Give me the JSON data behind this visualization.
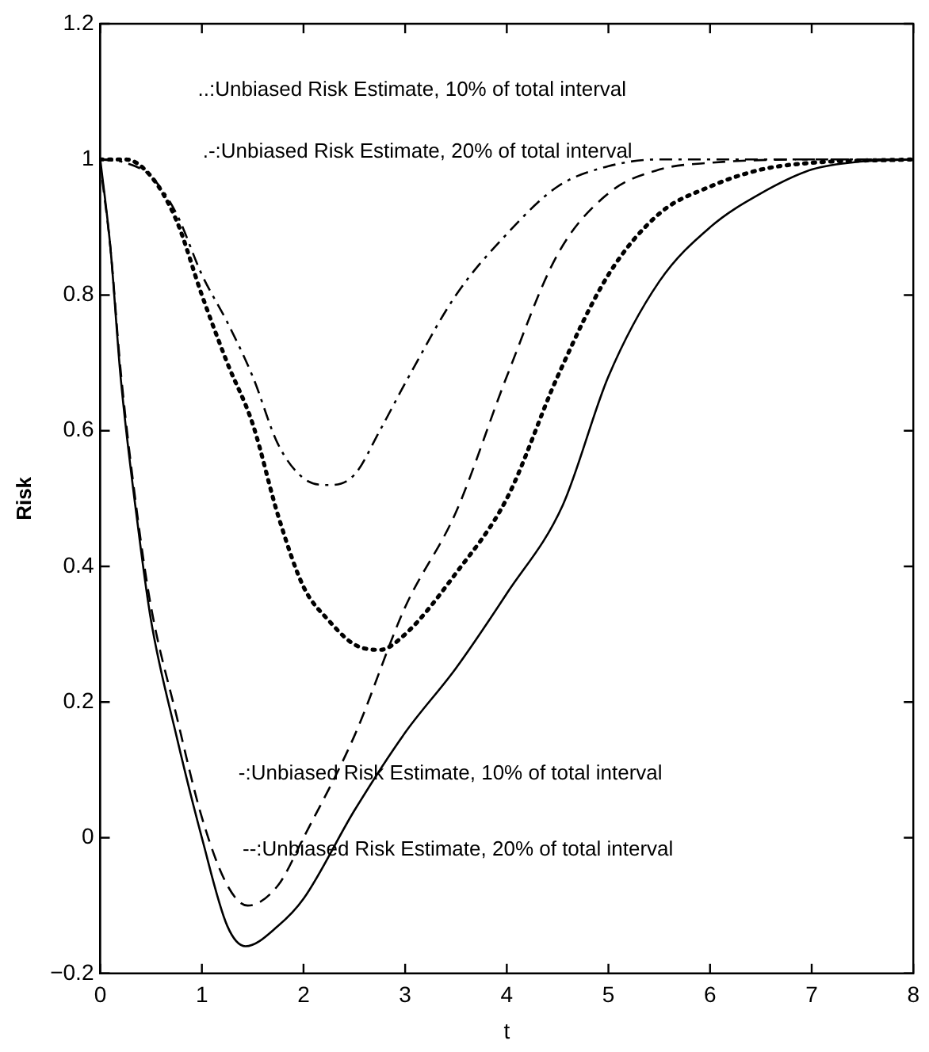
{
  "chart_data": {
    "type": "line",
    "xlabel": "t",
    "ylabel": "Risk",
    "x": [
      0,
      0.1,
      0.2,
      0.37,
      0.5,
      0.75,
      1,
      1.25,
      1.43,
      1.75,
      2,
      2.5,
      3,
      3.5,
      4,
      4.55,
      5,
      5.5,
      6,
      6.5,
      7,
      7.5,
      8
    ],
    "series": [
      {
        "color": "#000000",
        "line_style": "solid",
        "values": [
          1,
          0.87,
          0.68,
          0.46,
          0.32,
          0.15,
          0.0,
          -0.13,
          -0.16,
          -0.13,
          -0.09,
          0.04,
          0.155,
          0.25,
          0.36,
          0.49,
          0.68,
          0.82,
          0.9,
          0.95,
          0.985,
          0.997,
          1
        ]
      },
      {
        "color": "#000000",
        "line_style": "dashed",
        "x": [
          0.02,
          0.1,
          0.2,
          0.37,
          0.5,
          0.75,
          1,
          1.25,
          1.45,
          1.75,
          2,
          2.5,
          3,
          3.5,
          4,
          4.5,
          5,
          5.5,
          6,
          7,
          8
        ],
        "values": [
          0.97,
          0.87,
          0.69,
          0.47,
          0.34,
          0.18,
          0.03,
          -0.07,
          -0.1,
          -0.07,
          0.0,
          0.15,
          0.34,
          0.48,
          0.68,
          0.86,
          0.95,
          0.985,
          0.995,
          1,
          1
        ]
      },
      {
        "color": "#000000",
        "line_style": "dotted",
        "x": [
          0,
          0.25,
          0.5,
          0.75,
          1,
          1.25,
          1.5,
          1.75,
          2,
          2.25,
          2.5,
          2.75,
          3,
          3.5,
          4,
          4.5,
          5,
          5.5,
          6,
          6.5,
          7,
          8
        ],
        "values": [
          1,
          1,
          0.975,
          0.91,
          0.8,
          0.7,
          0.61,
          0.475,
          0.37,
          0.32,
          0.285,
          0.277,
          0.3,
          0.39,
          0.5,
          0.68,
          0.83,
          0.92,
          0.96,
          0.985,
          0.995,
          1
        ]
      },
      {
        "color": "#000000",
        "line_style": "dashdot",
        "x": [
          0,
          0.25,
          0.5,
          0.75,
          1,
          1.25,
          1.5,
          1.75,
          2,
          2.25,
          2.5,
          2.75,
          3,
          3.5,
          4,
          4.5,
          5,
          5.5,
          6,
          7,
          8
        ],
        "values": [
          1,
          0.995,
          0.975,
          0.92,
          0.83,
          0.76,
          0.68,
          0.58,
          0.53,
          0.52,
          0.535,
          0.6,
          0.67,
          0.8,
          0.89,
          0.96,
          0.99,
          1,
          1,
          1,
          1
        ]
      }
    ],
    "xlim": [
      0,
      8
    ],
    "xticks": [
      0,
      1,
      2,
      3,
      4,
      5,
      6,
      7,
      8
    ],
    "ylim": [
      -0.2,
      1.2
    ],
    "yticks": [
      -0.2,
      0,
      0.2,
      0.4,
      0.6,
      0.8,
      1,
      1.2
    ],
    "grid": false,
    "legend": false,
    "marker": "none",
    "annotations": [
      "..:Unbiased Risk Estimate, 10% of total interval",
      ".-:Unbiased Risk Estimate, 20% of total interval",
      "-:Unbiased Risk Estimate, 10% of total interval",
      "--:Unbiased Risk Estimate, 20% of total interval"
    ]
  }
}
